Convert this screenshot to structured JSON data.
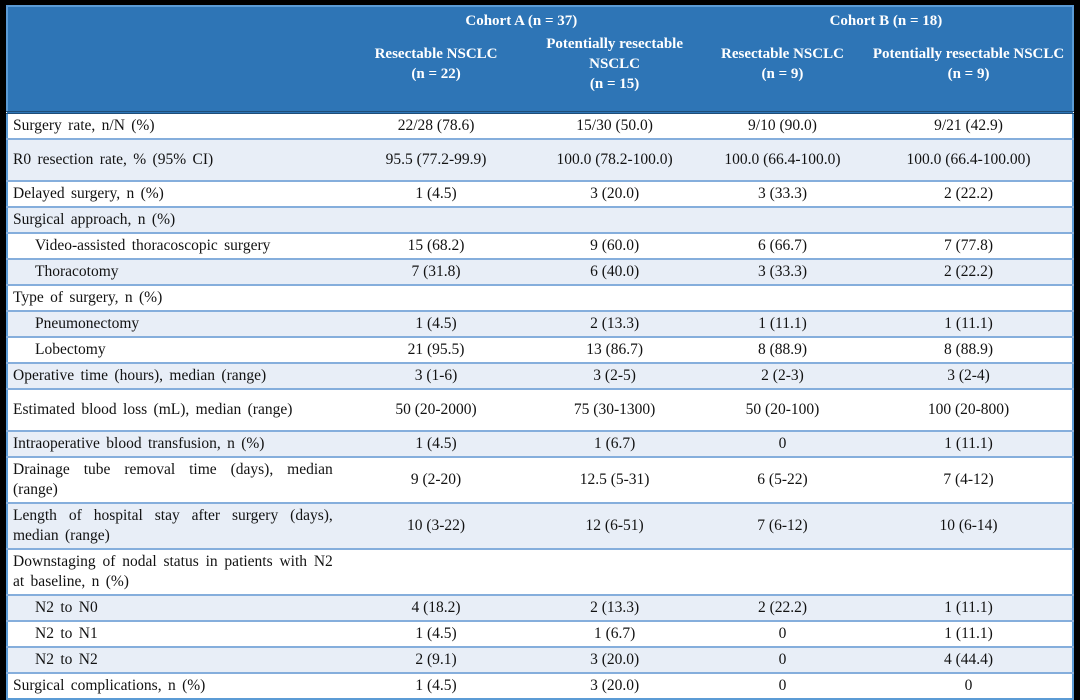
{
  "colors": {
    "header_bg": "#2E75B6",
    "header_text": "#FFFFFF",
    "stripe": "#E8EEF7",
    "row_line": "#85AEDC",
    "outer_border": "#5B9BD5",
    "header_underline": "#1F4E79",
    "body_text": "#121212"
  },
  "table": {
    "cohorts": [
      {
        "label": "Cohort A (n = 37)"
      },
      {
        "label": "Cohort B (n = 18)"
      }
    ],
    "columns": [
      {
        "title": "Resectable NSCLC",
        "n": "(n = 22)"
      },
      {
        "title": "Potentially resectable NSCLC",
        "n": "(n = 15)"
      },
      {
        "title": "Resectable NSCLC",
        "n": "(n = 9)"
      },
      {
        "title": "Potentially resectable NSCLC",
        "n": "(n = 9)"
      }
    ],
    "rows": [
      {
        "label": "Surgery rate, n/N (%)",
        "indent": false,
        "tall": false,
        "values": [
          "22/28 (78.6)",
          "15/30 (50.0)",
          "9/10 (90.0)",
          "9/21 (42.9)"
        ]
      },
      {
        "label": "R0 resection rate, % (95% CI)",
        "indent": false,
        "tall": true,
        "values": [
          "95.5 (77.2-99.9)",
          "100.0 (78.2-100.0)",
          "100.0 (66.4-100.0)",
          "100.0 (66.4-100.00)"
        ]
      },
      {
        "label": "Delayed surgery, n (%)",
        "indent": false,
        "tall": false,
        "values": [
          "1 (4.5)",
          "3 (20.0)",
          "3 (33.3)",
          "2 (22.2)"
        ]
      },
      {
        "label": "Surgical approach, n (%)",
        "indent": false,
        "tall": false,
        "values": [
          "",
          "",
          "",
          ""
        ]
      },
      {
        "label": "Video-assisted thoracoscopic surgery",
        "indent": true,
        "tall": false,
        "values": [
          "15 (68.2)",
          "9 (60.0)",
          "6 (66.7)",
          "7 (77.8)"
        ]
      },
      {
        "label": "Thoracotomy",
        "indent": true,
        "tall": false,
        "values": [
          "7 (31.8)",
          "6 (40.0)",
          "3 (33.3)",
          "2 (22.2)"
        ]
      },
      {
        "label": "Type of surgery, n (%)",
        "indent": false,
        "tall": false,
        "values": [
          "",
          "",
          "",
          ""
        ]
      },
      {
        "label": "Pneumonectomy",
        "indent": true,
        "tall": false,
        "values": [
          "1 (4.5)",
          "2 (13.3)",
          "1 (11.1)",
          "1 (11.1)"
        ]
      },
      {
        "label": "Lobectomy",
        "indent": true,
        "tall": false,
        "values": [
          "21 (95.5)",
          "13 (86.7)",
          "8 (88.9)",
          "8 (88.9)"
        ]
      },
      {
        "label": "Operative time (hours), median (range)",
        "indent": false,
        "tall": false,
        "values": [
          "3 (1-6)",
          "3 (2-5)",
          "2 (2-3)",
          "3 (2-4)"
        ]
      },
      {
        "label": "Estimated blood loss (mL), median (range)",
        "indent": false,
        "tall": true,
        "values": [
          "50 (20-2000)",
          "75 (30-1300)",
          "50 (20-100)",
          "100 (20-800)"
        ]
      },
      {
        "label": "Intraoperative blood transfusion, n (%)",
        "indent": false,
        "tall": false,
        "values": [
          "1 (4.5)",
          "1 (6.7)",
          "0",
          "1 (11.1)"
        ]
      },
      {
        "label": "Drainage tube removal time (days), median (range)",
        "indent": false,
        "tall": false,
        "values": [
          "9 (2-20)",
          "12.5 (5-31)",
          "6 (5-22)",
          "7 (4-12)"
        ]
      },
      {
        "label": "Length of hospital stay after surgery (days), median (range)",
        "indent": false,
        "tall": false,
        "values": [
          "10 (3-22)",
          "12 (6-51)",
          "7 (6-12)",
          "10 (6-14)"
        ]
      },
      {
        "label": "Downstaging of nodal status in patients with N2 at baseline, n (%)",
        "indent": false,
        "tall": false,
        "values": [
          "",
          "",
          "",
          ""
        ]
      },
      {
        "label": "N2 to N0",
        "indent": true,
        "tall": false,
        "values": [
          "4 (18.2)",
          "2 (13.3)",
          "2 (22.2)",
          "1 (11.1)"
        ]
      },
      {
        "label": "N2 to N1",
        "indent": true,
        "tall": false,
        "values": [
          "1 (4.5)",
          "1 (6.7)",
          "0",
          "1 (11.1)"
        ]
      },
      {
        "label": "N2 to N2",
        "indent": true,
        "tall": false,
        "values": [
          "2 (9.1)",
          "3 (20.0)",
          "0",
          "4 (44.4)"
        ]
      },
      {
        "label": "Surgical complications, n (%)",
        "indent": false,
        "tall": false,
        "values": [
          "1 (4.5)",
          "3 (20.0)",
          "0",
          "0"
        ]
      }
    ]
  }
}
